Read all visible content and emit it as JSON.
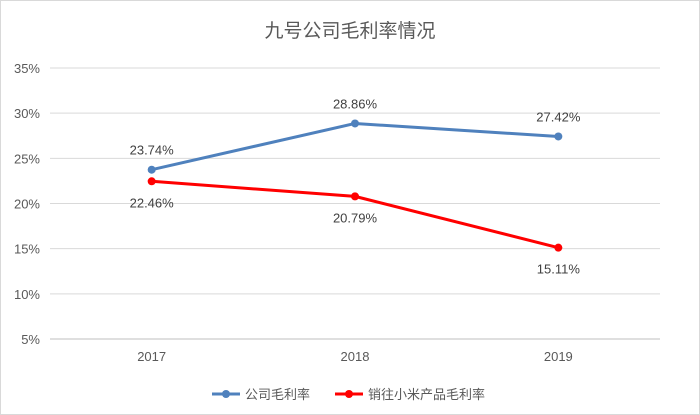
{
  "chart_data": {
    "type": "line",
    "title": "九号公司毛利率情况",
    "categories": [
      "2017",
      "2018",
      "2019"
    ],
    "y_ticks": [
      "35%",
      "30%",
      "25%",
      "20%",
      "15%",
      "10%",
      "5%"
    ],
    "ylim": [
      5,
      35
    ],
    "grid": true,
    "legend_position": "bottom",
    "series": [
      {
        "name": "公司毛利率",
        "values": [
          23.74,
          28.86,
          27.42
        ],
        "labels": [
          "23.74%",
          "28.86%",
          "27.42%"
        ],
        "label_side": [
          "above",
          "above",
          "above"
        ],
        "color": "#4f81bd"
      },
      {
        "name": "销往小米产品毛利率",
        "values": [
          22.46,
          20.79,
          15.11
        ],
        "labels": [
          "22.46%",
          "20.79%",
          "15.11%"
        ],
        "label_side": [
          "below",
          "below",
          "below"
        ],
        "color": "#ff0000"
      }
    ]
  }
}
